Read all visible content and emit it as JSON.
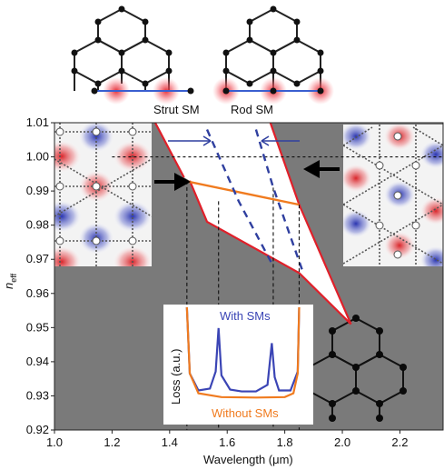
{
  "chart_data": {
    "type": "line",
    "xlabel": "Wavelength (μm)",
    "ylabel_main": "n",
    "ylabel_sub": "eff",
    "xlim": [
      1.0,
      2.35
    ],
    "ylim": [
      0.92,
      1.01
    ],
    "xticks": [
      "1.0",
      "1.2",
      "1.4",
      "1.6",
      "1.8",
      "2.0",
      "2.2"
    ],
    "yticks": [
      "0.92",
      "0.93",
      "0.94",
      "0.95",
      "0.96",
      "0.97",
      "0.98",
      "0.99",
      "1.00",
      "1.01"
    ],
    "colors": {
      "band_edge": "#e0202a",
      "fiber_mode": "#f07b1f",
      "surface_mode": "#2f3f9f",
      "background": "#7a7a7a"
    },
    "band_upper_edge": {
      "x": [
        1.35,
        1.45
      ],
      "y": [
        1.01,
        0.994
      ]
    },
    "band_lower_edge": {
      "x": [
        1.47,
        1.53,
        1.85,
        2.03
      ],
      "y": [
        0.993,
        0.981,
        0.966,
        0.951
      ]
    },
    "band_right_edge": {
      "x": [
        1.75,
        1.85,
        2.03
      ],
      "y": [
        1.01,
        0.986,
        0.951
      ]
    },
    "series": [
      {
        "name": "Without SMs",
        "x": [
          1.45,
          1.85
        ],
        "y": [
          0.993,
          0.986
        ]
      },
      {
        "name": "Strut SM",
        "x": [
          1.53,
          1.64,
          1.76
        ],
        "y": [
          1.008,
          0.987,
          0.968
        ]
      },
      {
        "name": "Rod SM",
        "x": [
          1.7,
          1.76,
          1.86
        ],
        "y": [
          1.008,
          0.991,
          0.967
        ]
      }
    ],
    "annotations": {
      "strut_label": "Strut SM",
      "rod_label": "Rod SM",
      "dotted_level": 1.0,
      "crossing_wavelengths": [
        1.46,
        1.57,
        1.76,
        1.85
      ]
    },
    "inset": {
      "ylabel": "Loss (a.u.)",
      "series": [
        {
          "name": "With SMs",
          "color": "#3b45b5",
          "x": [
            1.46,
            1.47,
            1.5,
            1.54,
            1.56,
            1.57,
            1.58,
            1.61,
            1.65,
            1.7,
            1.74,
            1.755,
            1.765,
            1.78,
            1.82,
            1.845,
            1.85
          ],
          "y": [
            1.0,
            0.3,
            0.12,
            0.14,
            0.32,
            0.78,
            0.28,
            0.13,
            0.11,
            0.11,
            0.18,
            0.62,
            0.26,
            0.12,
            0.12,
            0.32,
            1.0
          ]
        },
        {
          "name": "Without SMs",
          "color": "#f07b1f",
          "x": [
            1.46,
            1.47,
            1.5,
            1.58,
            1.7,
            1.8,
            1.83,
            1.845,
            1.85
          ],
          "y": [
            1.0,
            0.3,
            0.09,
            0.05,
            0.045,
            0.05,
            0.09,
            0.3,
            1.0
          ]
        }
      ]
    }
  }
}
